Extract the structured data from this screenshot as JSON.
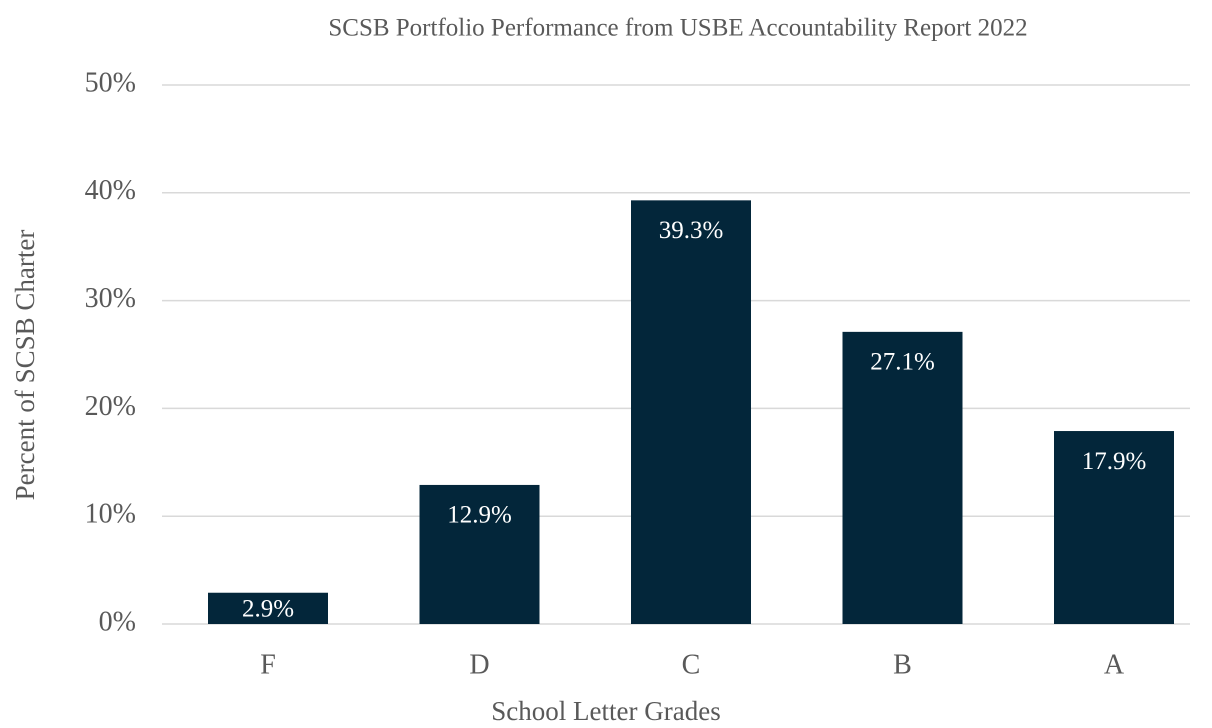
{
  "chart_data": {
    "type": "bar",
    "title": "SCSB Portfolio Performance from USBE Accountability Report 2022",
    "x_label": "School Letter Grades",
    "y_label": "Percent of SCSB Charter",
    "categories": [
      "F",
      "D",
      "C",
      "B",
      "A"
    ],
    "values": [
      2.9,
      12.9,
      39.3,
      27.1,
      17.9
    ],
    "value_labels": [
      "2.9%",
      "12.9%",
      "39.3%",
      "27.1%",
      "17.9%"
    ],
    "color": "#03263a",
    "ylim": [
      0,
      50
    ],
    "yticks": [
      {
        "value": 0,
        "label": "0%"
      },
      {
        "value": 10,
        "label": "10%"
      },
      {
        "value": 20,
        "label": "20%"
      },
      {
        "value": 30,
        "label": "30%"
      },
      {
        "value": 40,
        "label": "40%"
      },
      {
        "value": 50,
        "label": "50%"
      }
    ],
    "grid": true
  }
}
